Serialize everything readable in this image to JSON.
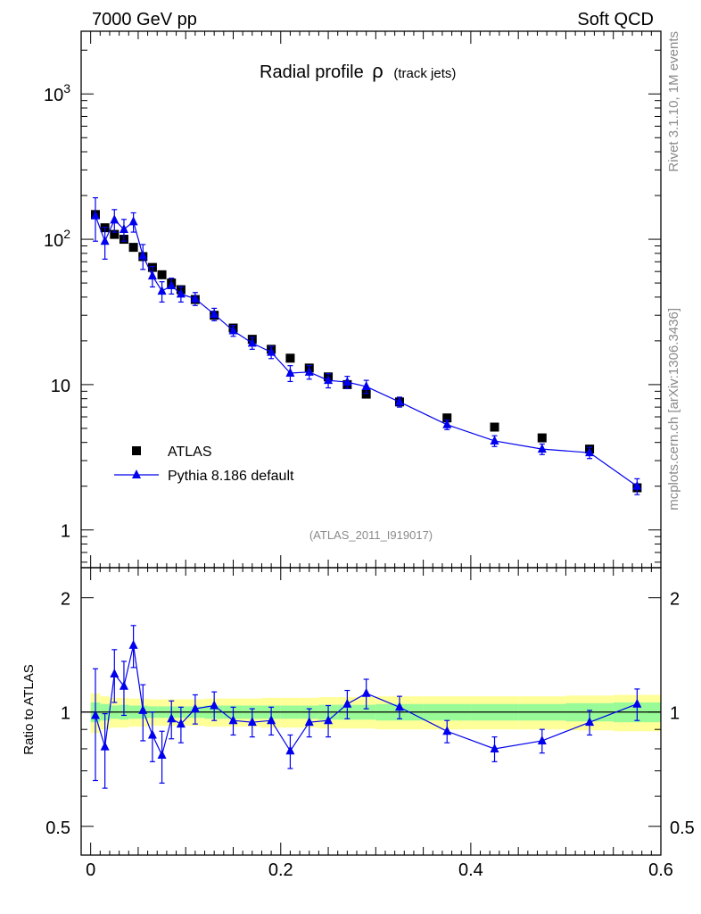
{
  "header": {
    "left": "7000 GeV pp",
    "right": "Soft QCD",
    "side_top": "Rivet 3.1.10,  1M events",
    "side_bottom": "mcplots.cern.ch [arXiv:1306.3436]"
  },
  "chart_data": [
    {
      "type": "scatter",
      "title": "Radial profile",
      "title_symbol": "ρ",
      "title_suffix": "(track jets)",
      "analysis_id": "(ATLAS_2011_I919017)",
      "yscale": "log",
      "xlim": [
        -0.01,
        0.6
      ],
      "ylim": [
        0.55,
        2700
      ],
      "yticks": [
        {
          "value": 1,
          "label": "1"
        },
        {
          "value": 10,
          "label": "10"
        },
        {
          "value": 100,
          "label": "10",
          "sup": "2"
        },
        {
          "value": 1000,
          "label": "10",
          "sup": "3"
        }
      ],
      "legend": {
        "placement": "lower-left"
      },
      "series": [
        {
          "name": "ATLAS",
          "marker": "square",
          "color": "#000000",
          "x": [
            0.005,
            0.015,
            0.025,
            0.035,
            0.045,
            0.055,
            0.065,
            0.075,
            0.085,
            0.095,
            0.11,
            0.13,
            0.15,
            0.17,
            0.19,
            0.21,
            0.23,
            0.25,
            0.27,
            0.29,
            0.325,
            0.375,
            0.425,
            0.475,
            0.525,
            0.575
          ],
          "y": [
            148,
            120,
            108,
            100,
            88,
            76,
            64,
            57,
            50,
            45,
            38.5,
            30,
            24.5,
            20.5,
            17.5,
            15.2,
            13,
            11.3,
            10,
            8.6,
            7.6,
            5.9,
            5.1,
            4.3,
            3.6,
            1.95
          ]
        },
        {
          "name": "Pythia 8.186 default",
          "marker": "triangle",
          "color": "#0000ee",
          "line": true,
          "x": [
            0.005,
            0.015,
            0.025,
            0.035,
            0.045,
            0.055,
            0.065,
            0.075,
            0.085,
            0.095,
            0.11,
            0.13,
            0.15,
            0.17,
            0.19,
            0.21,
            0.23,
            0.25,
            0.27,
            0.29,
            0.325,
            0.375,
            0.425,
            0.475,
            0.525,
            0.575
          ],
          "y": [
            145,
            97,
            136,
            117,
            132,
            77,
            56,
            44,
            48,
            42,
            39,
            30.5,
            23.5,
            19.3,
            16.7,
            12,
            12.2,
            10.7,
            10.4,
            9.7,
            7.6,
            5.3,
            4.1,
            3.6,
            3.4,
            2.0
          ],
          "err": [
            48,
            24,
            24,
            20,
            20,
            15,
            9,
            7,
            6,
            5,
            4,
            3,
            2,
            1.8,
            1.6,
            1.5,
            1.3,
            1.2,
            1.0,
            1.0,
            0.6,
            0.4,
            0.35,
            0.3,
            0.3,
            0.25
          ]
        }
      ]
    },
    {
      "type": "scatter",
      "ylabel": "Ratio to ATLAS",
      "yscale": "log",
      "xlim": [
        -0.01,
        0.6
      ],
      "ylim": [
        0.42,
        2.4
      ],
      "yticks": [
        {
          "value": 0.5,
          "label": "0.5"
        },
        {
          "value": 1,
          "label": "1"
        },
        {
          "value": 2,
          "label": "2"
        }
      ],
      "xticks": [
        {
          "value": 0,
          "label": "0"
        },
        {
          "value": 0.2,
          "label": "0.2"
        },
        {
          "value": 0.4,
          "label": "0.4"
        },
        {
          "value": 0.6,
          "label": "0.6"
        }
      ],
      "reference_line": 1,
      "bands": {
        "inner_color": "#98fb98",
        "outer_color": "#ffff99",
        "edges": [
          0.0,
          0.01,
          0.02,
          0.03,
          0.04,
          0.05,
          0.06,
          0.07,
          0.08,
          0.09,
          0.1,
          0.12,
          0.14,
          0.16,
          0.18,
          0.2,
          0.22,
          0.24,
          0.26,
          0.28,
          0.3,
          0.35,
          0.4,
          0.45,
          0.5,
          0.55,
          0.6
        ],
        "inner": [
          0.06,
          0.05,
          0.04,
          0.045,
          0.04,
          0.04,
          0.035,
          0.035,
          0.035,
          0.035,
          0.035,
          0.04,
          0.04,
          0.04,
          0.04,
          0.04,
          0.04,
          0.045,
          0.045,
          0.045,
          0.05,
          0.05,
          0.05,
          0.05,
          0.055,
          0.06
        ],
        "outer": [
          0.12,
          0.1,
          0.09,
          0.09,
          0.085,
          0.085,
          0.08,
          0.08,
          0.08,
          0.08,
          0.08,
          0.085,
          0.085,
          0.085,
          0.09,
          0.09,
          0.09,
          0.095,
          0.095,
          0.095,
          0.1,
          0.1,
          0.1,
          0.1,
          0.105,
          0.11
        ]
      },
      "series": [
        {
          "name": "Pythia 8.186 default",
          "marker": "triangle",
          "color": "#0000ee",
          "line": true,
          "x": [
            0.005,
            0.015,
            0.025,
            0.035,
            0.045,
            0.055,
            0.065,
            0.075,
            0.085,
            0.095,
            0.11,
            0.13,
            0.15,
            0.17,
            0.19,
            0.21,
            0.23,
            0.25,
            0.27,
            0.29,
            0.325,
            0.375,
            0.425,
            0.475,
            0.525,
            0.575
          ],
          "y": [
            0.98,
            0.81,
            1.26,
            1.17,
            1.5,
            1.01,
            0.87,
            0.77,
            0.96,
            0.93,
            1.02,
            1.04,
            0.95,
            0.94,
            0.95,
            0.79,
            0.94,
            0.95,
            1.05,
            1.12,
            1.03,
            0.89,
            0.8,
            0.84,
            0.94,
            1.05
          ],
          "err": [
            0.32,
            0.18,
            0.2,
            0.19,
            0.19,
            0.17,
            0.13,
            0.12,
            0.11,
            0.1,
            0.09,
            0.09,
            0.08,
            0.08,
            0.08,
            0.08,
            0.08,
            0.09,
            0.09,
            0.1,
            0.07,
            0.06,
            0.06,
            0.06,
            0.07,
            0.1
          ]
        }
      ]
    }
  ]
}
